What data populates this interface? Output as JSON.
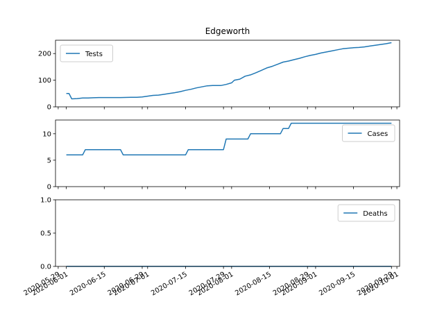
{
  "chart_data": {
    "type": "line",
    "title": "Edgeworth",
    "color": "#1f77b4",
    "x_ticks": [
      "2020-05-29",
      "2020-06-01",
      "2020-06-15",
      "2020-06-29",
      "2020-07-01",
      "2020-07-15",
      "2020-07-29",
      "2020-08-01",
      "2020-08-15",
      "2020-08-29",
      "2020-09-01",
      "2020-09-15",
      "2020-09-29",
      "2020-10-01"
    ],
    "x_range": [
      "2020-05-28",
      "2020-10-02"
    ],
    "panels": [
      {
        "name": "Tests",
        "legend_position": "upper-left",
        "ylim": [
          0,
          250
        ],
        "yticks": [
          0,
          100,
          200
        ],
        "ytick_labels": [
          "0",
          "100",
          "200"
        ],
        "points": [
          [
            "2020-06-01",
            50
          ],
          [
            "2020-06-02",
            50
          ],
          [
            "2020-06-03",
            30
          ],
          [
            "2020-06-05",
            31
          ],
          [
            "2020-06-07",
            33
          ],
          [
            "2020-06-09",
            33
          ],
          [
            "2020-06-11",
            34
          ],
          [
            "2020-06-13",
            35
          ],
          [
            "2020-06-17",
            35
          ],
          [
            "2020-06-21",
            35
          ],
          [
            "2020-06-25",
            36
          ],
          [
            "2020-06-27",
            36
          ],
          [
            "2020-06-29",
            37
          ],
          [
            "2020-07-01",
            40
          ],
          [
            "2020-07-03",
            43
          ],
          [
            "2020-07-05",
            44
          ],
          [
            "2020-07-07",
            47
          ],
          [
            "2020-07-09",
            50
          ],
          [
            "2020-07-11",
            53
          ],
          [
            "2020-07-13",
            57
          ],
          [
            "2020-07-15",
            62
          ],
          [
            "2020-07-17",
            66
          ],
          [
            "2020-07-19",
            71
          ],
          [
            "2020-07-21",
            75
          ],
          [
            "2020-07-23",
            79
          ],
          [
            "2020-07-25",
            80
          ],
          [
            "2020-07-28",
            80
          ],
          [
            "2020-07-30",
            84
          ],
          [
            "2020-08-01",
            90
          ],
          [
            "2020-08-02",
            100
          ],
          [
            "2020-08-04",
            104
          ],
          [
            "2020-08-06",
            115
          ],
          [
            "2020-08-08",
            120
          ],
          [
            "2020-08-10",
            128
          ],
          [
            "2020-08-12",
            137
          ],
          [
            "2020-08-14",
            146
          ],
          [
            "2020-08-16",
            152
          ],
          [
            "2020-08-18",
            160
          ],
          [
            "2020-08-20",
            168
          ],
          [
            "2020-08-22",
            172
          ],
          [
            "2020-08-24",
            177
          ],
          [
            "2020-08-26",
            182
          ],
          [
            "2020-08-28",
            188
          ],
          [
            "2020-08-30",
            193
          ],
          [
            "2020-09-01",
            197
          ],
          [
            "2020-09-03",
            202
          ],
          [
            "2020-09-05",
            206
          ],
          [
            "2020-09-07",
            210
          ],
          [
            "2020-09-09",
            214
          ],
          [
            "2020-09-11",
            218
          ],
          [
            "2020-09-13",
            220
          ],
          [
            "2020-09-15",
            222
          ],
          [
            "2020-09-17",
            223
          ],
          [
            "2020-09-19",
            225
          ],
          [
            "2020-09-21",
            228
          ],
          [
            "2020-09-23",
            231
          ],
          [
            "2020-09-25",
            234
          ],
          [
            "2020-09-27",
            237
          ],
          [
            "2020-09-29",
            241
          ]
        ]
      },
      {
        "name": "Cases",
        "legend_position": "upper-right",
        "ylim": [
          0,
          12.6
        ],
        "yticks": [
          0,
          5,
          10
        ],
        "ytick_labels": [
          "0",
          "5",
          "10"
        ],
        "points": [
          [
            "2020-06-01",
            6
          ],
          [
            "2020-06-07",
            6
          ],
          [
            "2020-06-08",
            7
          ],
          [
            "2020-06-21",
            7
          ],
          [
            "2020-06-22",
            6
          ],
          [
            "2020-07-15",
            6
          ],
          [
            "2020-07-16",
            7
          ],
          [
            "2020-07-29",
            7
          ],
          [
            "2020-07-30",
            9
          ],
          [
            "2020-08-07",
            9
          ],
          [
            "2020-08-08",
            10
          ],
          [
            "2020-08-19",
            10
          ],
          [
            "2020-08-20",
            11
          ],
          [
            "2020-08-22",
            11
          ],
          [
            "2020-08-23",
            12
          ],
          [
            "2020-09-29",
            12
          ]
        ]
      },
      {
        "name": "Deaths",
        "legend_position": "upper-right",
        "ylim": [
          0,
          1
        ],
        "yticks": [
          0,
          0.5,
          1
        ],
        "ytick_labels": [
          "0.0",
          "0.5",
          "1.0"
        ],
        "points": [
          [
            "2020-06-01",
            0
          ],
          [
            "2020-09-29",
            0
          ]
        ]
      }
    ]
  }
}
